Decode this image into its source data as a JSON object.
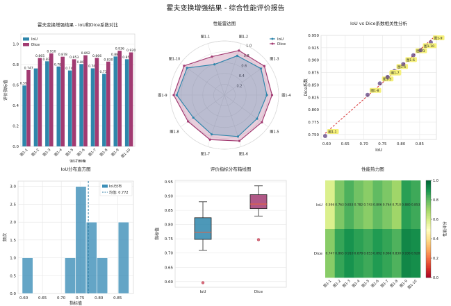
{
  "suptitle": "霍夫变换增强结果 - 综合性能评价报告",
  "chart_data": [
    {
      "type": "bar",
      "title": "霍夫变换增强结果 - IoU和Dice系数对比",
      "xlabel": "测试图像",
      "ylabel": "评价指标值",
      "categories": [
        "图1-1",
        "图1-2",
        "图1-3",
        "图1-4",
        "图1-5",
        "图1-6",
        "图1-7",
        "图1-8",
        "图1-9",
        "图1-10"
      ],
      "series": [
        {
          "name": "IoU",
          "color": "#2e86ab",
          "values": [
            0.596,
            0.763,
            0.833,
            0.782,
            0.743,
            0.806,
            0.764,
            0.71,
            0.88,
            0.853
          ],
          "labels": [
            "0.596",
            "",
            "0.833",
            "0.782",
            "0.743",
            "0.806",
            "0.764",
            "0.710",
            "0.880",
            "0.853"
          ]
        },
        {
          "name": "Dice",
          "color": "#a23b72",
          "values": [
            0.747,
            0.865,
            0.91,
            0.878,
            0.853,
            0.892,
            0.866,
            0.83,
            0.936,
            0.92
          ],
          "labels": [
            "0.747",
            "0.865",
            "0.910",
            "0.878",
            "0.853",
            "0.892",
            "0.866",
            "0.830",
            "0.936",
            "0.920"
          ]
        }
      ],
      "ylim": [
        0,
        1.1
      ],
      "yticks": [
        "0.0",
        "0.2",
        "0.4",
        "0.6",
        "0.8",
        "1.0"
      ],
      "legend": "top-left",
      "grid": true
    },
    {
      "type": "radar",
      "title": "性能雷达图",
      "categories": [
        "图1-1",
        "图1-2",
        "图1-3",
        "图1-4",
        "图1-5",
        "图1-6",
        "图1-7",
        "图1-8",
        "图1-9",
        "图1-10"
      ],
      "series": [
        {
          "name": "IoU",
          "color": "#2e86ab",
          "values": [
            0.596,
            0.763,
            0.833,
            0.782,
            0.743,
            0.806,
            0.764,
            0.71,
            0.88,
            0.853
          ]
        },
        {
          "name": "Dice",
          "color": "#a23b72",
          "values": [
            0.747,
            0.865,
            0.91,
            0.878,
            0.853,
            0.892,
            0.866,
            0.83,
            0.936,
            0.92
          ]
        }
      ],
      "rlim": [
        0,
        1
      ],
      "rticks": [
        "0.2",
        "0.4",
        "0.6",
        "0.8",
        "1.0"
      ],
      "legend": "top-right"
    },
    {
      "type": "scatter",
      "title": "IoU vs Dice系数相关性分析",
      "xlabel": "IoU",
      "ylabel": "Dice系数",
      "points": [
        {
          "label": "图1-1",
          "x": 0.596,
          "y": 0.747
        },
        {
          "label": "图1-2",
          "x": 0.763,
          "y": 0.865
        },
        {
          "label": "图1-3",
          "x": 0.833,
          "y": 0.91
        },
        {
          "label": "图1-4",
          "x": 0.782,
          "y": 0.878
        },
        {
          "label": "图1-5",
          "x": 0.743,
          "y": 0.853
        },
        {
          "label": "图1-6",
          "x": 0.806,
          "y": 0.892
        },
        {
          "label": "图1-7",
          "x": 0.764,
          "y": 0.866
        },
        {
          "label": "图1-8",
          "x": 0.71,
          "y": 0.83
        },
        {
          "label": "图1-9",
          "x": 0.88,
          "y": 0.936
        },
        {
          "label": "图1-10",
          "x": 0.853,
          "y": 0.92
        }
      ],
      "trendline": {
        "color": "#d62728",
        "style": "dashed"
      },
      "xlim": [
        0.585,
        0.895
      ],
      "ylim": [
        0.74,
        0.95
      ],
      "xticks": [
        0.6,
        0.65,
        0.7,
        0.75,
        0.8,
        0.85
      ],
      "yticks": [
        0.75,
        0.775,
        0.8,
        0.825,
        0.85,
        0.875,
        0.9,
        0.925,
        0.95
      ],
      "grid": true
    },
    {
      "type": "histogram",
      "title": "IoU分布直方图",
      "xlabel": "指标值",
      "ylabel": "频次",
      "bins": [
        {
          "from": 0.596,
          "to": 0.6244,
          "count": 1
        },
        {
          "from": 0.6244,
          "to": 0.6528,
          "count": 0
        },
        {
          "from": 0.6528,
          "to": 0.6812,
          "count": 0
        },
        {
          "from": 0.6812,
          "to": 0.7096,
          "count": 0
        },
        {
          "from": 0.7096,
          "to": 0.738,
          "count": 1
        },
        {
          "from": 0.738,
          "to": 0.7664,
          "count": 3
        },
        {
          "from": 0.7664,
          "to": 0.7948,
          "count": 2
        },
        {
          "from": 0.7948,
          "to": 0.8232,
          "count": 1
        },
        {
          "from": 0.8232,
          "to": 0.8516,
          "count": 0
        },
        {
          "from": 0.8516,
          "to": 0.88,
          "count": 2
        }
      ],
      "mean": 0.772,
      "legend": [
        "IoU分布",
        "均值: 0.772"
      ],
      "xlim": [
        0.585,
        0.892
      ],
      "ylim": [
        0,
        3.15
      ],
      "xticks": [
        0.6,
        0.65,
        0.7,
        0.75,
        0.8,
        0.85
      ],
      "yticks": [
        "0.0",
        "0.5",
        "1.0",
        "1.5",
        "2.0",
        "2.5",
        "3.0"
      ],
      "grid": true
    },
    {
      "type": "boxplot",
      "title": "评价指标分布箱线图",
      "ylabel": "指标值",
      "boxes": [
        {
          "name": "IoU",
          "color": "#2e86ab",
          "whisker_low": 0.71,
          "q1": 0.748,
          "median": 0.773,
          "q3": 0.824,
          "whisker_high": 0.88,
          "outliers": [
            0.596
          ]
        },
        {
          "name": "Dice",
          "color": "#a23b72",
          "whisker_low": 0.83,
          "q1": 0.856,
          "median": 0.872,
          "q3": 0.905,
          "whisker_high": 0.936,
          "outliers": [
            0.747
          ]
        }
      ],
      "ylim": [
        0.58,
        0.955
      ],
      "yticks": [
        "0.60",
        "0.65",
        "0.70",
        "0.75",
        "0.80",
        "0.85",
        "0.90",
        "0.95"
      ],
      "grid": true
    },
    {
      "type": "heatmap",
      "title": "性能热力图",
      "rows": [
        "IoU",
        "Dice"
      ],
      "columns": [
        "图1-1",
        "图1-2",
        "图1-3",
        "图1-4",
        "图1-5",
        "图1-6",
        "图1-7",
        "图1-8",
        "图1-9",
        "图1-10"
      ],
      "values": [
        [
          0.596,
          0.763,
          0.833,
          0.782,
          0.743,
          0.806,
          0.764,
          0.71,
          0.88,
          0.853
        ],
        [
          0.747,
          0.865,
          0.91,
          0.878,
          0.853,
          0.892,
          0.866,
          0.83,
          0.936,
          0.92
        ]
      ],
      "cell_labels": [
        [
          "0.596",
          "0.763",
          "0.833",
          "0.782",
          "0.743",
          "0.806",
          "0.764",
          "0.710",
          "0.880",
          "0.853"
        ],
        [
          "0.747",
          "0.865",
          "0.910",
          "0.878",
          "0.853",
          "0.892",
          "0.866",
          "0.830",
          "0.936",
          "0.920"
        ]
      ],
      "colorbar": {
        "label": "性能评分",
        "min": 0,
        "max": 1,
        "ticks": [
          "0.0",
          "0.2",
          "0.4",
          "0.6",
          "0.8",
          "1.0"
        ],
        "colormap": "RdYlGn"
      }
    }
  ]
}
